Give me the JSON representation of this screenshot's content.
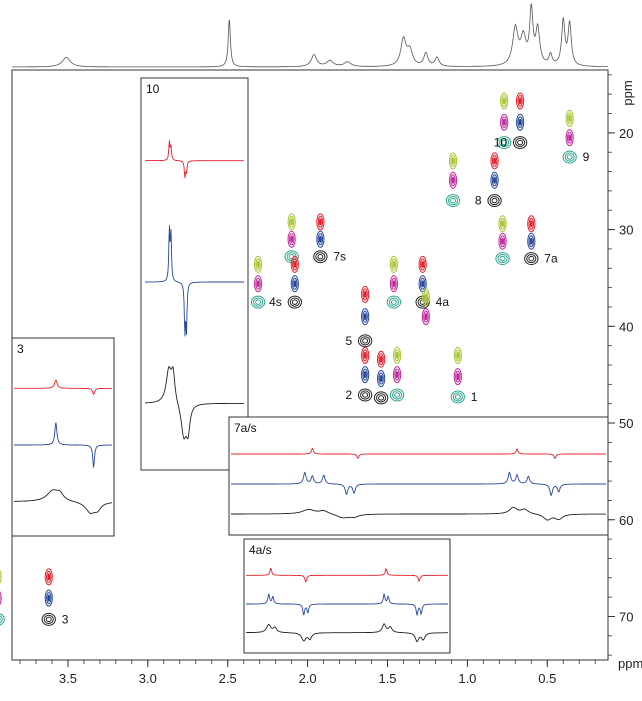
{
  "chart_data": {
    "type": "scatter",
    "title": "",
    "xlabel": "ppm",
    "ylabel": "ppm",
    "x_axis": {
      "range": [
        3.85,
        0.12
      ],
      "reversed": true,
      "ticks": [
        3.5,
        3.0,
        2.5,
        2.0,
        1.5,
        1.0,
        0.5
      ],
      "tick_labels": [
        "3.5",
        "3.0",
        "2.5",
        "2.0",
        "1.5",
        "1.0",
        "0.5"
      ]
    },
    "y_axis": {
      "range": [
        13.5,
        74.5
      ],
      "reversed": true,
      "side": "right",
      "ticks": [
        20,
        30,
        40,
        50,
        60,
        70
      ],
      "tick_labels": [
        "20",
        "30",
        "40",
        "50",
        "60",
        "70"
      ]
    },
    "series": [
      {
        "color": "#e4202a"
      },
      {
        "color": "#27479a"
      },
      {
        "color": "#222222"
      },
      {
        "color": "#a6c632"
      },
      {
        "color": "#c1289a"
      },
      {
        "color": "#2aa58e"
      }
    ],
    "projection_1h": {
      "peaks": [
        {
          "x": 3.51,
          "h": 0.16,
          "w": 0.03
        },
        {
          "x": 2.49,
          "h": 0.8,
          "w": 0.008
        },
        {
          "x": 1.96,
          "h": 0.2,
          "w": 0.02
        },
        {
          "x": 1.86,
          "h": 0.1,
          "w": 0.025
        },
        {
          "x": 1.75,
          "h": 0.08,
          "w": 0.025
        },
        {
          "x": 1.4,
          "h": 0.45,
          "w": 0.02
        },
        {
          "x": 1.36,
          "h": 0.25,
          "w": 0.02
        },
        {
          "x": 1.26,
          "h": 0.22,
          "w": 0.015
        },
        {
          "x": 1.19,
          "h": 0.15,
          "w": 0.015
        },
        {
          "x": 0.7,
          "h": 0.62,
          "w": 0.02
        },
        {
          "x": 0.65,
          "h": 0.45,
          "w": 0.02
        },
        {
          "x": 0.6,
          "h": 0.9,
          "w": 0.012
        },
        {
          "x": 0.56,
          "h": 0.6,
          "w": 0.015
        },
        {
          "x": 0.48,
          "h": 0.18,
          "w": 0.012
        },
        {
          "x": 0.4,
          "h": 0.75,
          "w": 0.012
        },
        {
          "x": 0.36,
          "h": 0.7,
          "w": 0.012
        }
      ]
    },
    "cross_peak_groups": [
      {
        "label": "10",
        "x": 0.67,
        "y": 21.0,
        "has_label": true,
        "label_side": "left",
        "spots": [
          {
            "series": 0,
            "dx": 0,
            "y": 16.7
          },
          {
            "series": 1,
            "dx": 0,
            "y": 18.9
          },
          {
            "series": 2,
            "dx": 0,
            "y": 21.0
          },
          {
            "series": 3,
            "dx": 0.1,
            "y": 16.7
          },
          {
            "series": 4,
            "dx": 0.1,
            "y": 18.9
          },
          {
            "series": 5,
            "dx": 0.1,
            "y": 21.0
          }
        ]
      },
      {
        "label": "9",
        "x": 0.36,
        "y": 22.5,
        "has_label": true,
        "label_side": "right",
        "spots": [
          {
            "series": 3,
            "dx": 0,
            "y": 18.5
          },
          {
            "series": 4,
            "dx": 0,
            "y": 20.5
          },
          {
            "series": 5,
            "dx": 0,
            "y": 22.5
          }
        ]
      },
      {
        "label": "8",
        "x": 0.83,
        "y": 27.0,
        "has_label": true,
        "label_side": "left",
        "spots": [
          {
            "series": 0,
            "dx": 0,
            "y": 22.9
          },
          {
            "series": 1,
            "dx": 0,
            "y": 24.9
          },
          {
            "series": 2,
            "dx": 0,
            "y": 27.0
          },
          {
            "series": 3,
            "dx": 0.26,
            "y": 22.9
          },
          {
            "series": 4,
            "dx": 0.26,
            "y": 24.9
          },
          {
            "series": 5,
            "dx": 0.26,
            "y": 27.0
          }
        ]
      },
      {
        "label": "7a",
        "x": 0.6,
        "y": 33.0,
        "has_label": true,
        "label_side": "right",
        "spots": [
          {
            "series": 0,
            "dx": 0,
            "y": 29.4
          },
          {
            "series": 1,
            "dx": 0,
            "y": 31.2
          },
          {
            "series": 2,
            "dx": 0,
            "y": 33.0
          },
          {
            "series": 3,
            "dx": 0.18,
            "y": 29.4
          },
          {
            "series": 4,
            "dx": 0.18,
            "y": 31.2
          },
          {
            "series": 5,
            "dx": 0.18,
            "y": 33.0
          }
        ]
      },
      {
        "label": "7s",
        "x": 1.92,
        "y": 32.8,
        "has_label": true,
        "label_side": "right",
        "spots": [
          {
            "series": 0,
            "dx": 0,
            "y": 29.2
          },
          {
            "series": 1,
            "dx": 0,
            "y": 31.0
          },
          {
            "series": 2,
            "dx": 0,
            "y": 32.8
          },
          {
            "series": 3,
            "dx": 0.18,
            "y": 29.2
          },
          {
            "series": 4,
            "dx": 0.18,
            "y": 31.0
          },
          {
            "series": 5,
            "dx": 0.18,
            "y": 32.8
          }
        ]
      },
      {
        "label": "4s",
        "x": 2.08,
        "y": 37.5,
        "has_label": true,
        "label_side": "left",
        "spots": [
          {
            "series": 0,
            "dx": 0,
            "y": 33.6
          },
          {
            "series": 1,
            "dx": 0,
            "y": 35.6
          },
          {
            "series": 2,
            "dx": 0,
            "y": 37.5
          },
          {
            "series": 3,
            "dx": 0.23,
            "y": 33.6
          },
          {
            "series": 4,
            "dx": 0.23,
            "y": 35.6
          },
          {
            "series": 5,
            "dx": 0.23,
            "y": 37.5
          }
        ]
      },
      {
        "label": "4a",
        "x": 1.28,
        "y": 37.5,
        "has_label": true,
        "label_side": "right",
        "spots": [
          {
            "series": 0,
            "dx": 0,
            "y": 33.6
          },
          {
            "series": 1,
            "dx": 0,
            "y": 35.6
          },
          {
            "series": 2,
            "dx": 0,
            "y": 37.5
          },
          {
            "series": 3,
            "dx": 0.18,
            "y": 33.6
          },
          {
            "series": 4,
            "dx": 0.18,
            "y": 35.6
          },
          {
            "series": 5,
            "dx": 0.18,
            "y": 37.5
          }
        ]
      },
      {
        "label": "5",
        "x": 1.64,
        "y": 41.5,
        "has_label": true,
        "label_side": "left",
        "spots": [
          {
            "series": 0,
            "dx": 0,
            "y": 36.7
          },
          {
            "series": 1,
            "dx": 0,
            "y": 39.0
          },
          {
            "series": 2,
            "dx": 0,
            "y": 41.5
          }
        ]
      },
      {
        "label": "",
        "x": 1.26,
        "y": 39.0,
        "has_label": false,
        "label_side": "right",
        "spots": [
          {
            "series": 3,
            "dx": 0,
            "y": 37.0
          },
          {
            "series": 4,
            "dx": 0,
            "y": 39.0
          }
        ]
      },
      {
        "label": "2",
        "x": 1.64,
        "y": 47.1,
        "has_label": true,
        "label_side": "left",
        "spots": [
          {
            "series": 0,
            "dx": 0,
            "y": 43.0
          },
          {
            "series": 1,
            "dx": 0,
            "y": 45.0
          },
          {
            "series": 2,
            "dx": 0,
            "y": 47.1
          },
          {
            "series": 0,
            "dx": -0.1,
            "y": 43.4
          },
          {
            "series": 1,
            "dx": -0.1,
            "y": 45.4
          },
          {
            "series": 2,
            "dx": -0.1,
            "y": 47.4
          },
          {
            "series": 3,
            "dx": -0.2,
            "y": 43.0
          },
          {
            "series": 4,
            "dx": -0.2,
            "y": 45.0
          },
          {
            "series": 5,
            "dx": -0.2,
            "y": 47.1
          }
        ]
      },
      {
        "label": "1",
        "x": 1.06,
        "y": 47.3,
        "has_label": true,
        "label_side": "right",
        "spots": [
          {
            "series": 3,
            "dx": 0,
            "y": 43.0
          },
          {
            "series": 4,
            "dx": 0,
            "y": 45.2
          },
          {
            "series": 5,
            "dx": 0,
            "y": 47.3
          }
        ]
      },
      {
        "label": "3",
        "x": 3.62,
        "y": 70.3,
        "has_label": true,
        "label_side": "right",
        "spots": [
          {
            "series": 0,
            "dx": 0,
            "y": 65.9
          },
          {
            "series": 1,
            "dx": 0,
            "y": 68.1
          },
          {
            "series": 2,
            "dx": 0,
            "y": 70.3
          },
          {
            "series": 3,
            "dx": 0.32,
            "y": 65.9
          },
          {
            "series": 4,
            "dx": 0.32,
            "y": 68.1
          },
          {
            "series": 5,
            "dx": 0.32,
            "y": 70.3
          }
        ]
      }
    ],
    "insets": [
      {
        "label": "3",
        "orientation": "horizontal",
        "traces": [
          {
            "series": 0,
            "peaks": [
              {
                "p": 0.43,
                "h": 0.35,
                "w": 0.015
              },
              {
                "p": 0.8,
                "h": -0.25,
                "w": 0.012
              }
            ]
          },
          {
            "series": 1,
            "peaks": [
              {
                "p": 0.43,
                "h": 0.95,
                "w": 0.012
              },
              {
                "p": 0.8,
                "h": -0.95,
                "w": 0.01
              }
            ]
          },
          {
            "series": 2,
            "peaks": [
              {
                "p": 0.4,
                "h": 0.45,
                "w": 0.07
              },
              {
                "p": 0.47,
                "h": 0.25,
                "w": 0.04
              },
              {
                "p": 0.77,
                "h": -0.45,
                "w": 0.06
              },
              {
                "p": 0.84,
                "h": -0.25,
                "w": 0.04
              }
            ]
          }
        ]
      },
      {
        "label": "10",
        "orientation": "vertical",
        "traces": [
          {
            "series": 0,
            "peaks": [
              {
                "p": 0.265,
                "h": 0.35,
                "w": 0.006
              },
              {
                "p": 0.28,
                "h": 0.25,
                "w": 0.006
              },
              {
                "p": 0.41,
                "h": -0.3,
                "w": 0.006
              },
              {
                "p": 0.425,
                "h": -0.2,
                "w": 0.006
              }
            ]
          },
          {
            "series": 1,
            "peaks": [
              {
                "p": 0.265,
                "h": 0.95,
                "w": 0.006
              },
              {
                "p": 0.28,
                "h": 0.85,
                "w": 0.006
              },
              {
                "p": 0.41,
                "h": -0.9,
                "w": 0.006
              },
              {
                "p": 0.425,
                "h": -0.85,
                "w": 0.006
              }
            ]
          },
          {
            "series": 2,
            "peaks": [
              {
                "p": 0.26,
                "h": 0.6,
                "w": 0.03
              },
              {
                "p": 0.3,
                "h": 0.5,
                "w": 0.02
              },
              {
                "p": 0.4,
                "h": -0.6,
                "w": 0.03
              },
              {
                "p": 0.44,
                "h": -0.45,
                "w": 0.02
              }
            ]
          }
        ]
      },
      {
        "label": "7a/s",
        "orientation": "horizontal",
        "traces": [
          {
            "series": 0,
            "peaks": [
              {
                "p": 0.22,
                "h": 0.45,
                "w": 0.003
              },
              {
                "p": 0.34,
                "h": -0.35,
                "w": 0.003
              },
              {
                "p": 0.76,
                "h": 0.4,
                "w": 0.003
              },
              {
                "p": 0.86,
                "h": -0.35,
                "w": 0.003
              }
            ]
          },
          {
            "series": 1,
            "peaks": [
              {
                "p": 0.2,
                "h": 0.9,
                "w": 0.004
              },
              {
                "p": 0.22,
                "h": 0.6,
                "w": 0.004
              },
              {
                "p": 0.25,
                "h": 0.7,
                "w": 0.004
              },
              {
                "p": 0.31,
                "h": -0.8,
                "w": 0.004
              },
              {
                "p": 0.33,
                "h": -0.7,
                "w": 0.004
              },
              {
                "p": 0.74,
                "h": 0.9,
                "w": 0.004
              },
              {
                "p": 0.76,
                "h": 0.7,
                "w": 0.004
              },
              {
                "p": 0.79,
                "h": 0.6,
                "w": 0.004
              },
              {
                "p": 0.85,
                "h": -0.9,
                "w": 0.004
              },
              {
                "p": 0.87,
                "h": -0.6,
                "w": 0.004
              }
            ]
          },
          {
            "series": 2,
            "peaks": [
              {
                "p": 0.21,
                "h": 0.35,
                "w": 0.02
              },
              {
                "p": 0.25,
                "h": 0.25,
                "w": 0.015
              },
              {
                "p": 0.3,
                "h": -0.3,
                "w": 0.02
              },
              {
                "p": 0.33,
                "h": -0.2,
                "w": 0.015
              },
              {
                "p": 0.75,
                "h": 0.5,
                "w": 0.012
              },
              {
                "p": 0.78,
                "h": 0.35,
                "w": 0.012
              },
              {
                "p": 0.84,
                "h": -0.45,
                "w": 0.012
              },
              {
                "p": 0.87,
                "h": -0.4,
                "w": 0.012
              }
            ]
          }
        ]
      },
      {
        "label": "4a/s",
        "orientation": "horizontal",
        "traces": [
          {
            "series": 0,
            "peaks": [
              {
                "p": 0.13,
                "h": 0.6,
                "w": 0.005
              },
              {
                "p": 0.3,
                "h": -0.55,
                "w": 0.005
              },
              {
                "p": 0.69,
                "h": 0.55,
                "w": 0.005
              },
              {
                "p": 0.85,
                "h": -0.5,
                "w": 0.005
              }
            ]
          },
          {
            "series": 1,
            "peaks": [
              {
                "p": 0.12,
                "h": 0.8,
                "w": 0.005
              },
              {
                "p": 0.14,
                "h": 0.6,
                "w": 0.005
              },
              {
                "p": 0.29,
                "h": -0.9,
                "w": 0.005
              },
              {
                "p": 0.31,
                "h": -0.7,
                "w": 0.005
              },
              {
                "p": 0.68,
                "h": 0.8,
                "w": 0.005
              },
              {
                "p": 0.7,
                "h": 0.6,
                "w": 0.005
              },
              {
                "p": 0.84,
                "h": -0.9,
                "w": 0.005
              },
              {
                "p": 0.86,
                "h": -0.8,
                "w": 0.005
              }
            ]
          },
          {
            "series": 2,
            "peaks": [
              {
                "p": 0.12,
                "h": 0.65,
                "w": 0.012
              },
              {
                "p": 0.15,
                "h": 0.4,
                "w": 0.01
              },
              {
                "p": 0.29,
                "h": -0.65,
                "w": 0.012
              },
              {
                "p": 0.32,
                "h": -0.5,
                "w": 0.01
              },
              {
                "p": 0.68,
                "h": 0.7,
                "w": 0.01
              },
              {
                "p": 0.71,
                "h": 0.45,
                "w": 0.01
              },
              {
                "p": 0.84,
                "h": -0.7,
                "w": 0.01
              },
              {
                "p": 0.87,
                "h": -0.55,
                "w": 0.01
              }
            ]
          }
        ]
      }
    ],
    "grid": false,
    "legend": "none"
  }
}
